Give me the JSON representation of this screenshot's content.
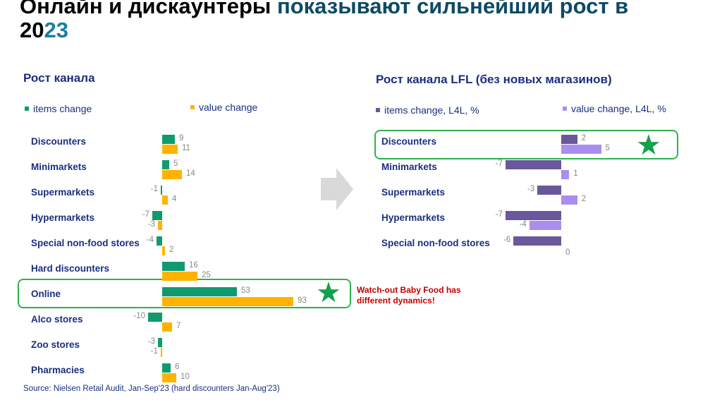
{
  "title": {
    "part1": "Онлайн и дискаунтеры ",
    "part2": "показывают сильнейший рост в ",
    "part3a": "20",
    "part3b": "23"
  },
  "note": "Watch-out Baby Food has different dynamics!",
  "source": "Source: Nielsen Retail Audit, Jan-Sep'23 (hard discounters Jan-Aug'23)",
  "colors": {
    "items": "#0f9b6e",
    "value": "#ffb300",
    "lfl_items": "#6a579c",
    "lfl_value": "#a98ef0",
    "highlight": "#2db34a"
  },
  "chart_data": [
    {
      "type": "bar",
      "orientation": "horizontal",
      "title": "Рост канала",
      "categories": [
        "Discounters",
        "Minimarkets",
        "Supermarkets",
        "Hypermarkets",
        "Special non-food stores",
        "Hard discounters",
        "Online",
        "Alco stores",
        "Zoo stores",
        "Pharmacies"
      ],
      "series": [
        {
          "name": "items change",
          "values": [
            9,
            5,
            -1,
            -7,
            -4,
            16,
            53,
            -10,
            -3,
            6
          ]
        },
        {
          "name": "value change",
          "values": [
            11,
            14,
            4,
            -3,
            2,
            25,
            93,
            7,
            -1,
            10
          ]
        }
      ],
      "highlight": "Online"
    },
    {
      "type": "bar",
      "orientation": "horizontal",
      "title": "Рост канала LFL (без новых магазинов)",
      "categories": [
        "Discounters",
        "Minimarkets",
        "Supermarkets",
        "Hypermarkets",
        "Special non-food stores"
      ],
      "series": [
        {
          "name": "items change, L4L, %",
          "values": [
            2,
            -7,
            -3,
            -7,
            -6
          ]
        },
        {
          "name": "value change, L4L, %",
          "values": [
            5,
            1,
            2,
            -4,
            0
          ]
        }
      ],
      "highlight": "Discounters"
    }
  ]
}
